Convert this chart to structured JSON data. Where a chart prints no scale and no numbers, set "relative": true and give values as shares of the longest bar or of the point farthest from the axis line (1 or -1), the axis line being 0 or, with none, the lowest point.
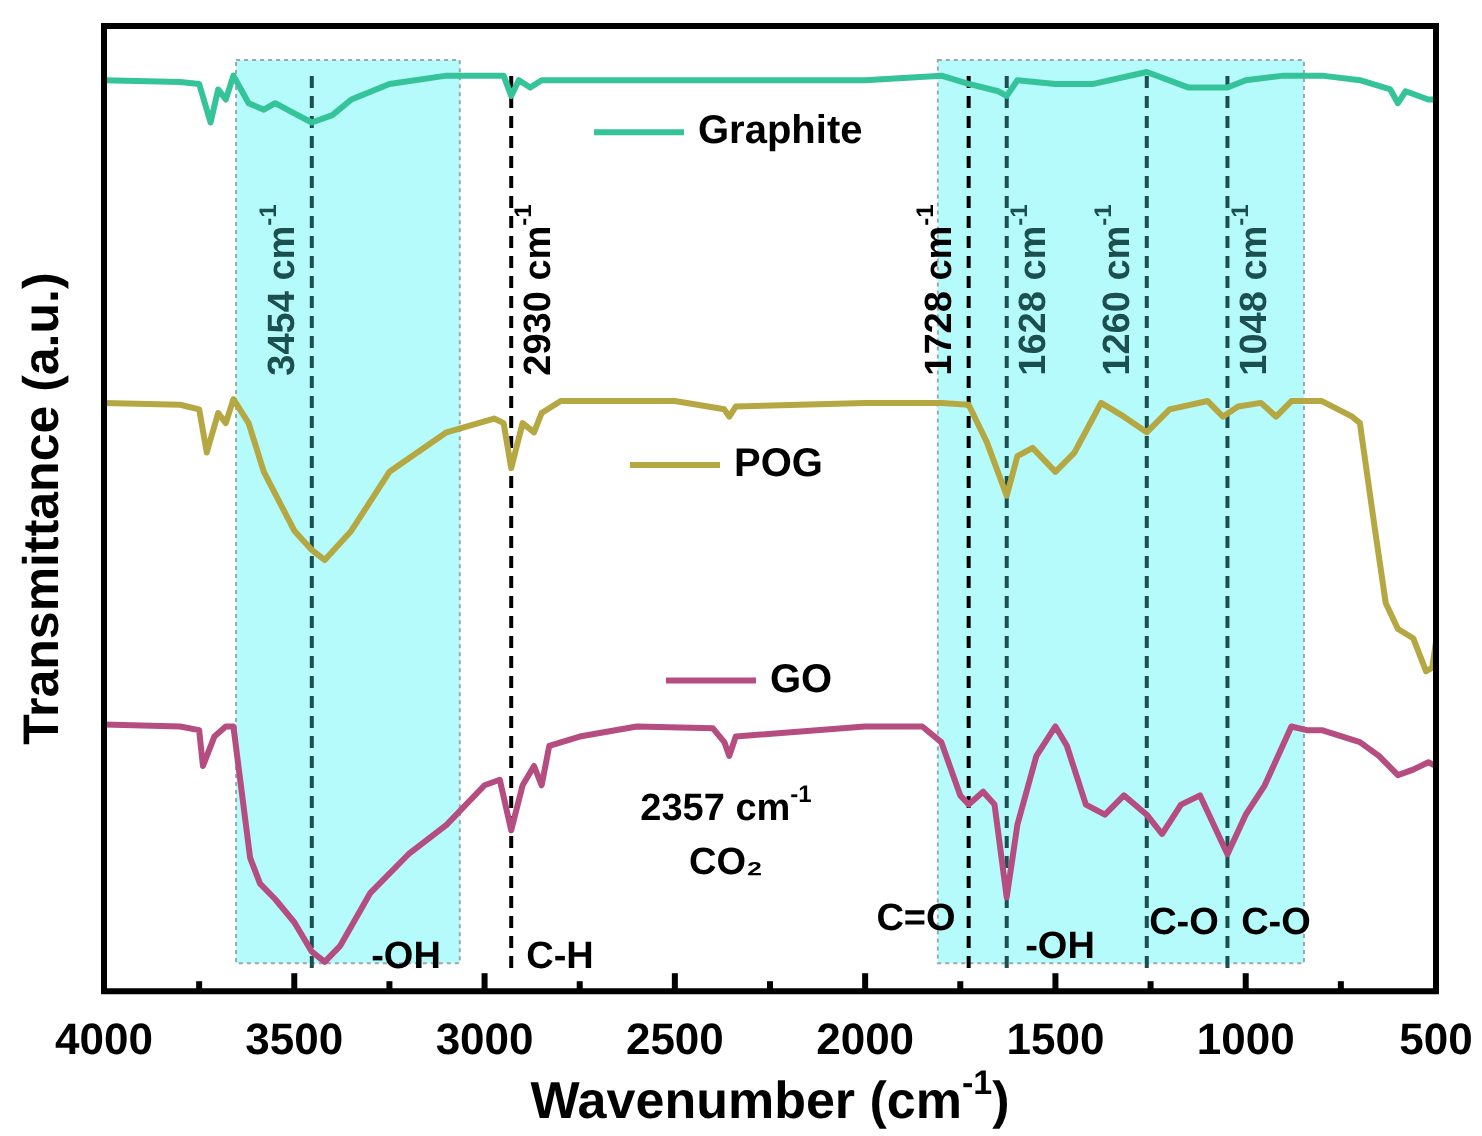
{
  "chart_data": {
    "type": "line",
    "relative": true,
    "xlabel": "Wavenumber (cm$^{-1}$)",
    "ylabel": "Transmittance (a.u.)",
    "xlim": [
      4000,
      500
    ],
    "xticks": [
      4000,
      {
        "value": 3750,
        "label": null
      },
      3500,
      {
        "value": 3250,
        "label": null
      },
      3000,
      {
        "value": 2750,
        "label": null
      },
      2500,
      {
        "value": 2250,
        "label": null
      },
      2000,
      {
        "value": 1750,
        "label": null
      },
      1500,
      {
        "value": 1250,
        "label": null
      },
      1000,
      {
        "value": 750,
        "label": null
      },
      500
    ],
    "series": [
      {
        "name": "Graphite",
        "color": "#35c39a",
        "x": [
          4000,
          3800,
          3750,
          3720,
          3700,
          3680,
          3660,
          3620,
          3580,
          3550,
          3500,
          3454,
          3400,
          3350,
          3250,
          3100,
          2950,
          2930,
          2910,
          2880,
          2850,
          2500,
          2000,
          1800,
          1728,
          1650,
          1628,
          1600,
          1500,
          1400,
          1260,
          1150,
          1048,
          1000,
          900,
          800,
          700,
          620,
          600,
          580,
          520,
          500
        ],
        "values": [
          0.991,
          0.989,
          0.987,
          0.945,
          0.981,
          0.97,
          0.996,
          0.966,
          0.959,
          0.966,
          0.955,
          0.945,
          0.953,
          0.97,
          0.987,
          0.996,
          0.996,
          0.974,
          0.991,
          0.983,
          0.991,
          0.991,
          0.991,
          0.996,
          0.987,
          0.979,
          0.974,
          0.991,
          0.987,
          0.987,
          1.0,
          0.983,
          0.983,
          0.991,
          0.996,
          0.996,
          0.991,
          0.981,
          0.966,
          0.979,
          0.97,
          0.97
        ]
      },
      {
        "name": "POG",
        "color": "#b5a842",
        "x": [
          4000,
          3800,
          3750,
          3730,
          3700,
          3680,
          3660,
          3620,
          3580,
          3500,
          3454,
          3420,
          3350,
          3250,
          3100,
          2975,
          2950,
          2930,
          2900,
          2870,
          2850,
          2800,
          2500,
          2370,
          2357,
          2340,
          2000,
          1800,
          1728,
          1680,
          1628,
          1600,
          1560,
          1500,
          1450,
          1380,
          1320,
          1260,
          1200,
          1100,
          1060,
          1020,
          960,
          920,
          880,
          800,
          720,
          700,
          660,
          632,
          600,
          560,
          526,
          510,
          500
        ],
        "values": [
          0.64,
          0.638,
          0.633,
          0.586,
          0.629,
          0.618,
          0.644,
          0.618,
          0.565,
          0.501,
          0.48,
          0.469,
          0.501,
          0.565,
          0.608,
          0.623,
          0.618,
          0.569,
          0.618,
          0.608,
          0.629,
          0.642,
          0.642,
          0.633,
          0.625,
          0.636,
          0.64,
          0.64,
          0.638,
          0.597,
          0.539,
          0.582,
          0.591,
          0.565,
          0.586,
          0.64,
          0.625,
          0.608,
          0.633,
          0.642,
          0.625,
          0.636,
          0.64,
          0.625,
          0.642,
          0.642,
          0.625,
          0.618,
          0.501,
          0.422,
          0.394,
          0.384,
          0.348,
          0.352,
          0.38
        ]
      },
      {
        "name": "GO",
        "color": "#b54d80",
        "x": [
          4000,
          3800,
          3750,
          3740,
          3710,
          3680,
          3660,
          3616,
          3590,
          3550,
          3500,
          3454,
          3420,
          3380,
          3300,
          3200,
          3100,
          3000,
          2960,
          2930,
          2900,
          2870,
          2850,
          2830,
          2750,
          2600,
          2400,
          2370,
          2357,
          2340,
          2000,
          1850,
          1800,
          1750,
          1728,
          1690,
          1660,
          1628,
          1600,
          1550,
          1500,
          1470,
          1420,
          1370,
          1320,
          1260,
          1220,
          1170,
          1120,
          1048,
          1000,
          950,
          880,
          840,
          800,
          700,
          650,
          600,
          560,
          520,
          500
        ],
        "values": [
          0.29,
          0.288,
          0.284,
          0.245,
          0.277,
          0.288,
          0.288,
          0.145,
          0.117,
          0.1,
          0.075,
          0.043,
          0.032,
          0.049,
          0.107,
          0.149,
          0.181,
          0.224,
          0.23,
          0.175,
          0.224,
          0.245,
          0.224,
          0.267,
          0.277,
          0.288,
          0.286,
          0.271,
          0.256,
          0.277,
          0.288,
          0.288,
          0.271,
          0.213,
          0.203,
          0.217,
          0.203,
          0.102,
          0.181,
          0.256,
          0.288,
          0.267,
          0.203,
          0.192,
          0.213,
          0.192,
          0.171,
          0.203,
          0.213,
          0.149,
          0.192,
          0.224,
          0.288,
          0.284,
          0.284,
          0.271,
          0.256,
          0.235,
          0.241,
          0.249,
          0.245
        ]
      }
    ],
    "bands": [
      {
        "axis": "x",
        "from": 3653,
        "to": 3065,
        "color": "#b6fbfb"
      },
      {
        "axis": "x",
        "from": 1809,
        "to": 847,
        "color": "#b6fbfb"
      }
    ],
    "ref_lines": [
      {
        "axis": "x",
        "value": 3454,
        "label": "3454 cm$^{-1}$",
        "color": "#1b4f50",
        "line_style": "dashed"
      },
      {
        "axis": "x",
        "value": 2930,
        "label": "2930 cm$^{-1}$",
        "color": "#000000",
        "line_style": "dashed"
      },
      {
        "axis": "x",
        "value": 1728,
        "label": "1728 cm$^{-1}$",
        "color": "#000000",
        "line_style": "dashed"
      },
      {
        "axis": "x",
        "value": 1628,
        "label": "1628 cm$^{-1}$",
        "color": "#1b4f50",
        "line_style": "dashed"
      },
      {
        "axis": "x",
        "value": 1260,
        "label": "1260 cm$^{-1}$",
        "color": "#1b4f50",
        "line_style": "dashed"
      },
      {
        "axis": "x",
        "value": 1048,
        "label": "1048 cm$^{-1}$",
        "color": "#1b4f50",
        "line_style": "dashed"
      }
    ],
    "annotations": [
      "-OH",
      "C-H",
      "2357 cm$^{-1}$",
      "CO₂",
      "C=O",
      "-OH",
      "C-O",
      "C-O"
    ],
    "line_style": "solid",
    "marker": "none",
    "legend": "center"
  }
}
